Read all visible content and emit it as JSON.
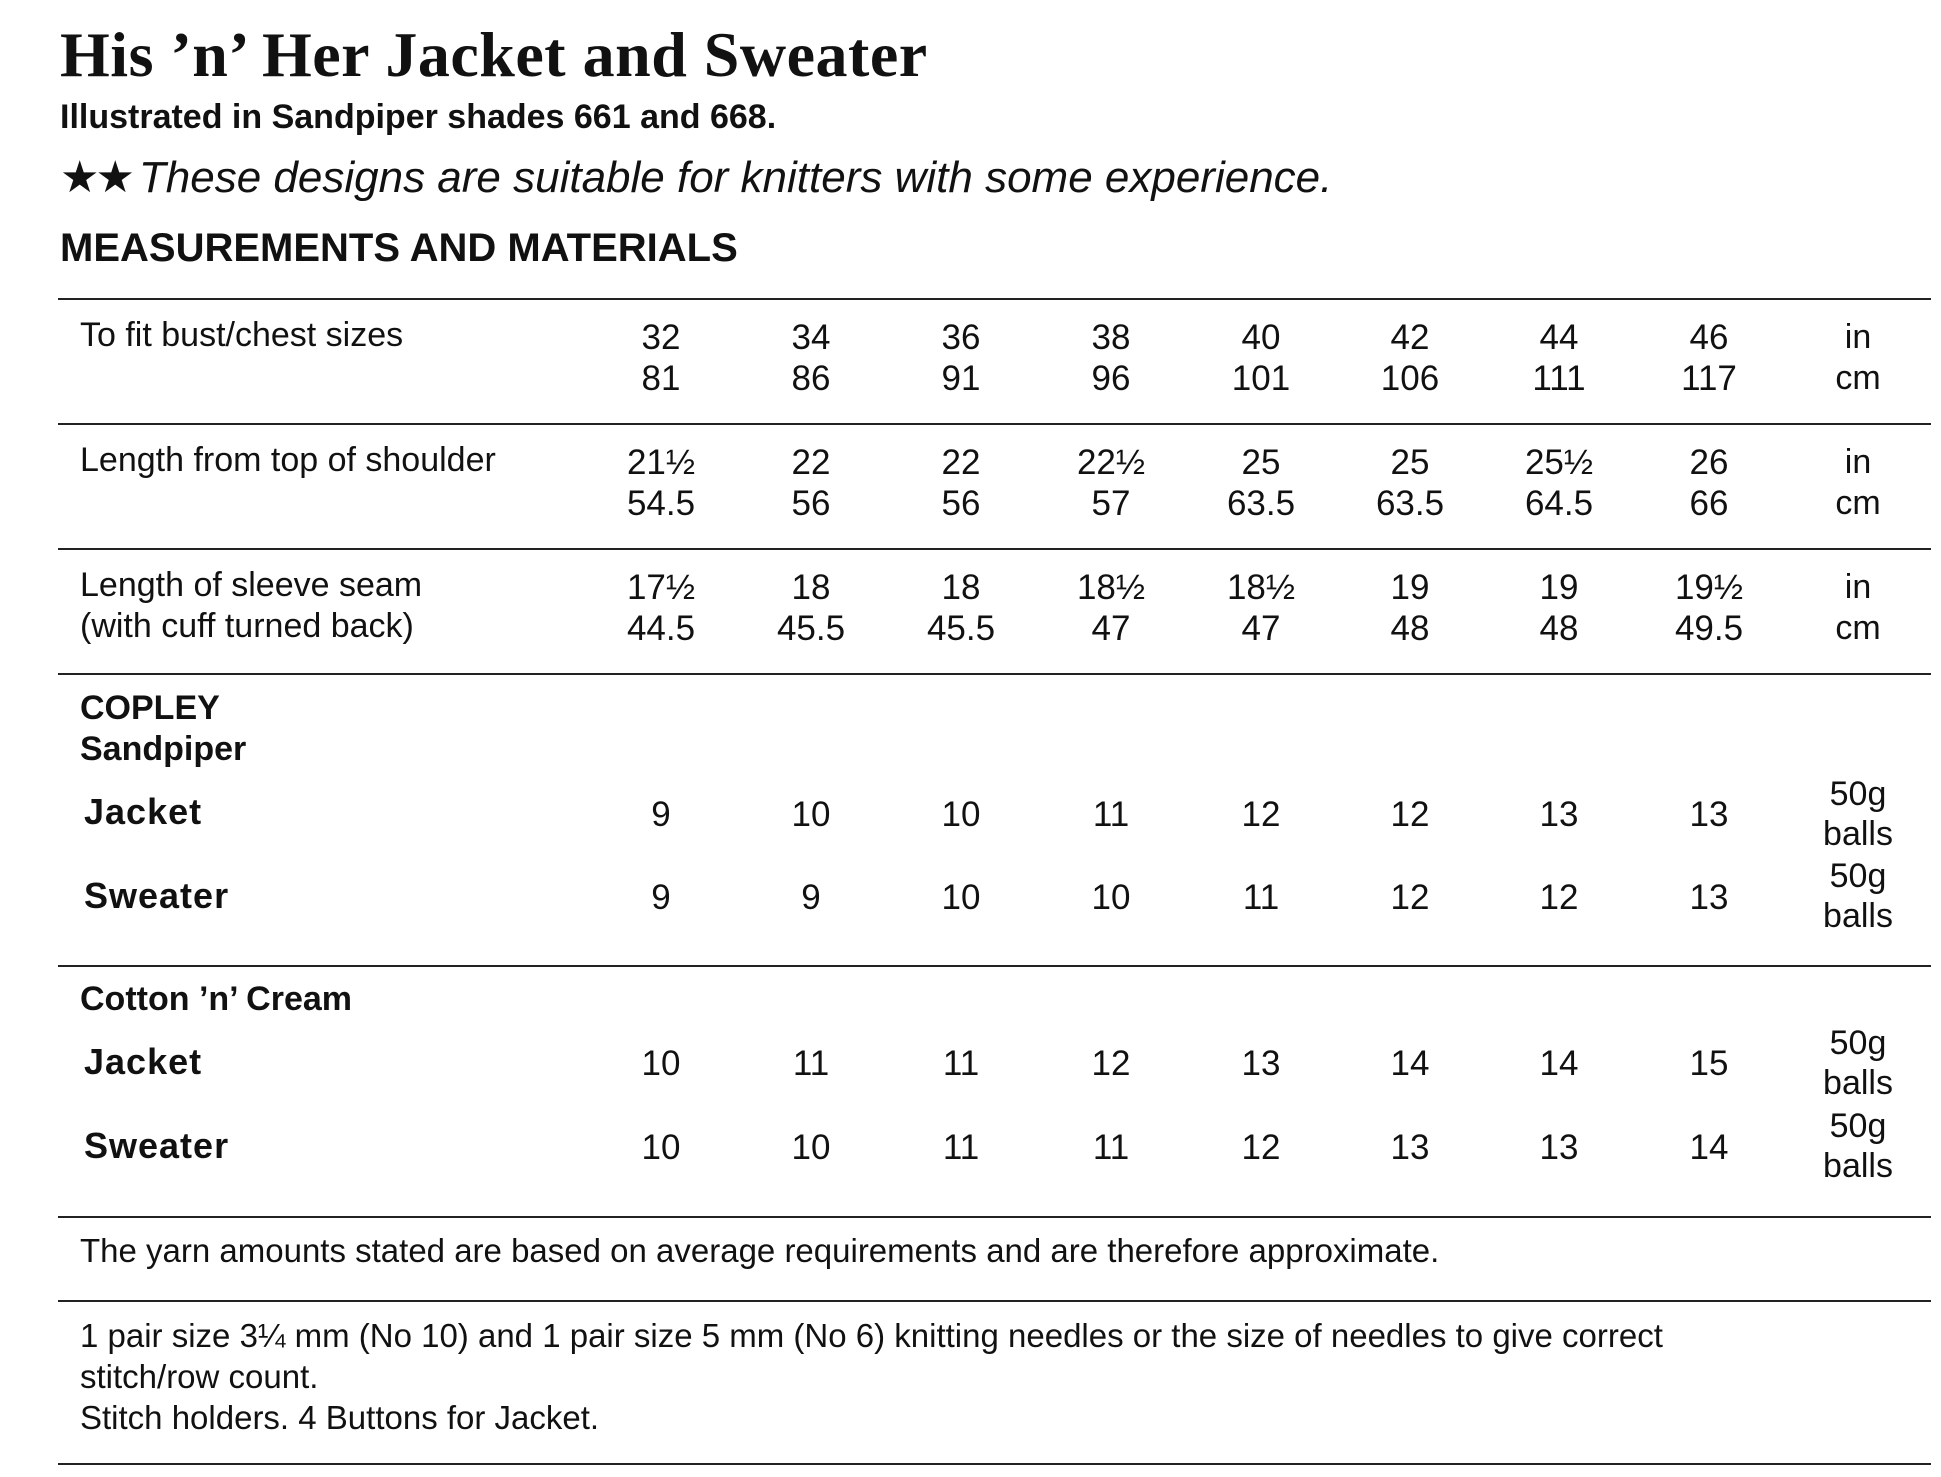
{
  "title": "His ’n’ Her Jacket and Sweater",
  "subtitle": "Illustrated in Sandpiper shades 661 and 668.",
  "difficulty": {
    "stars": "★★",
    "text": "These designs are suitable for knitters with some experience."
  },
  "section_heading": "MEASUREMENTS AND MATERIALS",
  "measurements": {
    "bust": {
      "label": "To fit bust/chest sizes",
      "in": [
        "32",
        "34",
        "36",
        "38",
        "40",
        "42",
        "44",
        "46"
      ],
      "cm": [
        "81",
        "86",
        "91",
        "96",
        "101",
        "106",
        "111",
        "117"
      ],
      "unit_in": "in",
      "unit_cm": "cm"
    },
    "length": {
      "label": "Length from top of shoulder",
      "in": [
        "21½",
        "22",
        "22",
        "22½",
        "25",
        "25",
        "25½",
        "26"
      ],
      "cm": [
        "54.5",
        "56",
        "56",
        "57",
        "63.5",
        "63.5",
        "64.5",
        "66"
      ],
      "unit_in": "in",
      "unit_cm": "cm"
    },
    "sleeve": {
      "label_line1": "Length of sleeve seam",
      "label_line2": "(with cuff turned back)",
      "in": [
        "17½",
        "18",
        "18",
        "18½",
        "18½",
        "19",
        "19",
        "19½"
      ],
      "cm": [
        "44.5",
        "45.5",
        "45.5",
        "47",
        "47",
        "48",
        "48",
        "49.5"
      ],
      "unit_in": "in",
      "unit_cm": "cm"
    }
  },
  "yarns": {
    "copley": {
      "heading_line1": "COPLEY",
      "heading_line2": "Sandpiper",
      "jacket": {
        "label": "Jacket",
        "values": [
          "9",
          "10",
          "10",
          "11",
          "12",
          "12",
          "13",
          "13"
        ],
        "unit_line1": "50g",
        "unit_line2": "balls"
      },
      "sweater": {
        "label": "Sweater",
        "values": [
          "9",
          "9",
          "10",
          "10",
          "11",
          "12",
          "12",
          "13"
        ],
        "unit_line1": "50g",
        "unit_line2": "balls"
      }
    },
    "cotton": {
      "heading": "Cotton ’n’ Cream",
      "jacket": {
        "label": "Jacket",
        "values": [
          "10",
          "11",
          "11",
          "12",
          "13",
          "14",
          "14",
          "15"
        ],
        "unit_line1": "50g",
        "unit_line2": "balls"
      },
      "sweater": {
        "label": "Sweater",
        "values": [
          "10",
          "10",
          "11",
          "11",
          "12",
          "13",
          "13",
          "14"
        ],
        "unit_line1": "50g",
        "unit_line2": "balls"
      }
    }
  },
  "yarn_note": "The yarn amounts stated are based on average requirements and are therefore approximate.",
  "needles": {
    "line1": "1 pair size 3¼ mm (No 10) and 1 pair size 5 mm (No 6) knitting needles or the size of needles to give correct",
    "line2": "stitch/row count.",
    "line3": "Stitch holders. 4 Buttons for Jacket."
  }
}
